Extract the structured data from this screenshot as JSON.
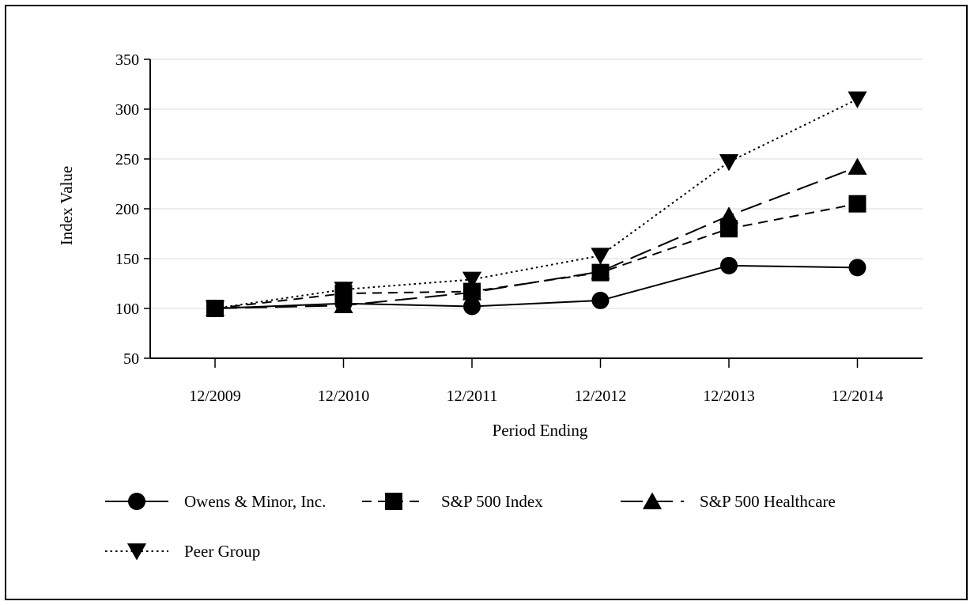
{
  "chart_data": {
    "type": "line",
    "title": "",
    "xlabel": "Period Ending",
    "ylabel": "Index Value",
    "categories": [
      "12/2009",
      "12/2010",
      "12/2011",
      "12/2012",
      "12/2013",
      "12/2014"
    ],
    "y_ticks": [
      "50",
      "100",
      "150",
      "200",
      "250",
      "300",
      "350"
    ],
    "ylim": [
      50,
      350
    ],
    "grid": "horizontal",
    "legend_position": "bottom",
    "series": [
      {
        "name": "Owens & Minor, Inc.",
        "marker": "circle",
        "dash": "solid",
        "values": [
          100,
          105,
          102,
          108,
          143,
          141
        ]
      },
      {
        "name": "S&P 500 Index",
        "marker": "square",
        "dash": "dashed",
        "values": [
          100,
          115,
          117,
          136,
          180,
          205
        ]
      },
      {
        "name": "S&P 500 Healthcare",
        "marker": "triangle-up",
        "dash": "long-dash",
        "values": [
          100,
          103,
          116,
          137,
          193,
          242
        ]
      },
      {
        "name": "Peer Group",
        "marker": "triangle-down",
        "dash": "dotted",
        "values": [
          100,
          119,
          129,
          153,
          247,
          310
        ]
      }
    ]
  },
  "colors": {
    "line": "#000000",
    "grid": "#d9d9d9",
    "background": "#ffffff"
  }
}
